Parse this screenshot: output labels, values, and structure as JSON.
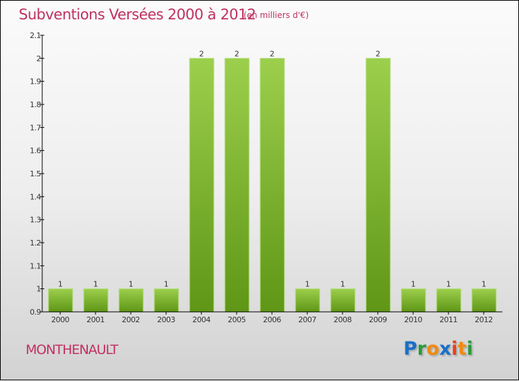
{
  "header": {
    "title": "Subventions Versées 2000 à 2012",
    "unit": "(en milliers d'€)"
  },
  "footer": {
    "place": "MONTHENAULT",
    "logo": "Proxiti"
  },
  "colors": {
    "bar_top": "#9ccf4c",
    "bar_bottom": "#5f9616",
    "title": "#c0315f"
  },
  "chart_data": {
    "type": "bar",
    "title": "Subventions Versées 2000 à 2012",
    "ylabel": "(en milliers d'€)",
    "xlabel": "",
    "categories": [
      "2000",
      "2001",
      "2002",
      "2003",
      "2004",
      "2005",
      "2006",
      "2007",
      "2008",
      "2009",
      "2010",
      "2011",
      "2012"
    ],
    "values": [
      1,
      1,
      1,
      1,
      2,
      2,
      2,
      1,
      1,
      2,
      1,
      1,
      1
    ],
    "ylim": [
      0.9,
      2.1
    ],
    "yticks": [
      0.9,
      1,
      1.1,
      1.2,
      1.3,
      1.4,
      1.5,
      1.6,
      1.7,
      1.8,
      1.9,
      2,
      2.1
    ],
    "grid": false
  }
}
